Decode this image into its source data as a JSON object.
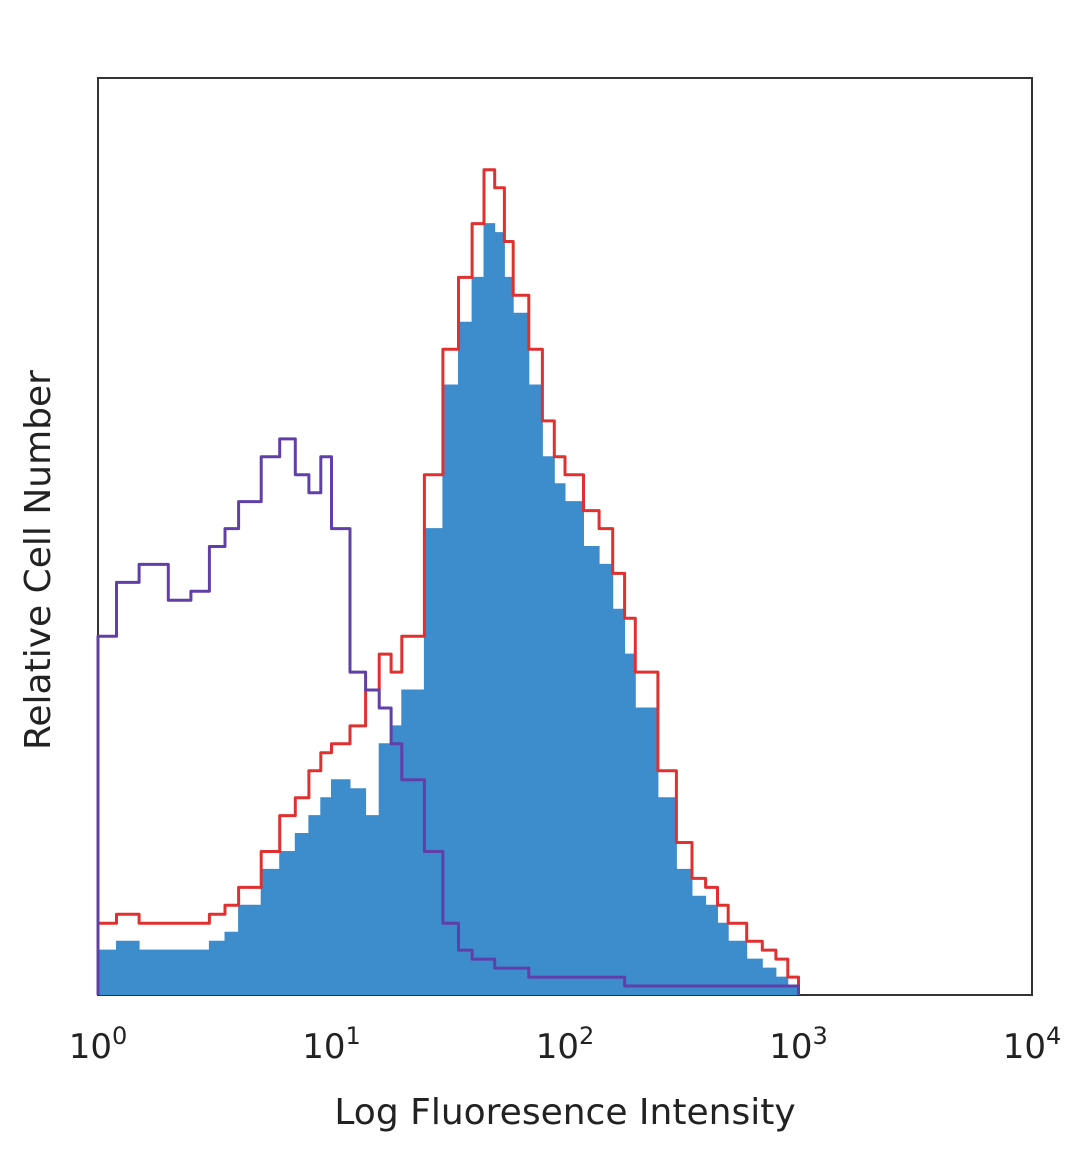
{
  "chart_data": {
    "type": "histogram",
    "x_scale": "log",
    "xlim": [
      1,
      10000
    ],
    "xlabel": "Log Fluoresence Intensity",
    "ylabel": "Relative Cell Number",
    "x_ticks": [
      {
        "value": 1,
        "base": "10",
        "exp": "0"
      },
      {
        "value": 10,
        "base": "10",
        "exp": "1"
      },
      {
        "value": 100,
        "base": "10",
        "exp": "2"
      },
      {
        "value": 1000,
        "base": "10",
        "exp": "3"
      },
      {
        "value": 10000,
        "base": "10",
        "exp": "4"
      }
    ],
    "y_axis_ticks_shown": false,
    "grid": false,
    "ylim": [
      0,
      100
    ],
    "series": [
      {
        "role": "filled",
        "color": "#3d8ccc",
        "x": [
          1.0,
          1.2,
          1.5,
          2.0,
          2.5,
          3.0,
          3.5,
          4.0,
          5.0,
          6.0,
          7.0,
          8.0,
          9.0,
          10.0,
          12.0,
          14.0,
          16.0,
          18.0,
          20.0,
          25.0,
          30.0,
          35.0,
          40.0,
          45.0,
          50.0,
          55.0,
          60.0,
          70.0,
          80.0,
          90.0,
          100.0,
          120.0,
          140.0,
          160.0,
          180.0,
          200.0,
          250.0,
          300.0,
          350.0,
          400.0,
          450.0,
          500.0,
          600.0,
          700.0,
          800.0,
          900.0,
          1000.0
        ],
        "values": [
          5,
          6,
          5,
          5,
          5,
          6,
          7,
          10,
          14,
          16,
          18,
          20,
          22,
          24,
          23,
          20,
          28,
          30,
          34,
          52,
          68,
          75,
          80,
          86,
          85,
          80,
          76,
          68,
          60,
          57,
          55,
          50,
          48,
          43,
          38,
          32,
          22,
          14,
          11,
          10,
          8,
          6,
          4,
          3,
          2,
          1,
          0
        ]
      },
      {
        "role": "outline",
        "color": "#e03030",
        "x": [
          1.0,
          1.2,
          1.5,
          2.0,
          2.5,
          3.0,
          3.5,
          4.0,
          5.0,
          6.0,
          7.0,
          8.0,
          9.0,
          10.0,
          12.0,
          14.0,
          16.0,
          18.0,
          20.0,
          25.0,
          30.0,
          35.0,
          40.0,
          45.0,
          50.0,
          55.0,
          60.0,
          70.0,
          80.0,
          90.0,
          100.0,
          120.0,
          140.0,
          160.0,
          180.0,
          200.0,
          250.0,
          300.0,
          350.0,
          400.0,
          450.0,
          500.0,
          600.0,
          700.0,
          800.0,
          900.0,
          1000.0
        ],
        "values": [
          8,
          9,
          8,
          8,
          8,
          9,
          10,
          12,
          16,
          20,
          22,
          25,
          27,
          28,
          30,
          34,
          38,
          36,
          40,
          58,
          72,
          80,
          86,
          92,
          90,
          84,
          78,
          72,
          64,
          60,
          58,
          54,
          52,
          47,
          42,
          36,
          25,
          17,
          13,
          12,
          10,
          8,
          6,
          5,
          4,
          2,
          0
        ]
      },
      {
        "role": "outline",
        "color": "#6040a8",
        "x": [
          1.0,
          1.2,
          1.5,
          2.0,
          2.5,
          3.0,
          3.5,
          4.0,
          5.0,
          6.0,
          7.0,
          8.0,
          9.0,
          10.0,
          12.0,
          14.0,
          16.0,
          18.0,
          20.0,
          25.0,
          30.0,
          35.0,
          40.0,
          45.0,
          50.0,
          55.0,
          60.0,
          70.0,
          80.0,
          90.0,
          100.0,
          120.0,
          140.0,
          160.0,
          180.0,
          200.0,
          250.0,
          300.0,
          350.0,
          400.0,
          450.0,
          500.0,
          600.0,
          700.0,
          800.0,
          900.0,
          1000.0
        ],
        "values": [
          40,
          46,
          48,
          44,
          45,
          50,
          52,
          55,
          60,
          62,
          58,
          56,
          60,
          52,
          36,
          34,
          32,
          28,
          24,
          16,
          8,
          5,
          4,
          4,
          3,
          3,
          3,
          2,
          2,
          2,
          2,
          2,
          2,
          2,
          1,
          1,
          1,
          1,
          1,
          1,
          1,
          1,
          1,
          1,
          1,
          1,
          0
        ]
      }
    ]
  }
}
